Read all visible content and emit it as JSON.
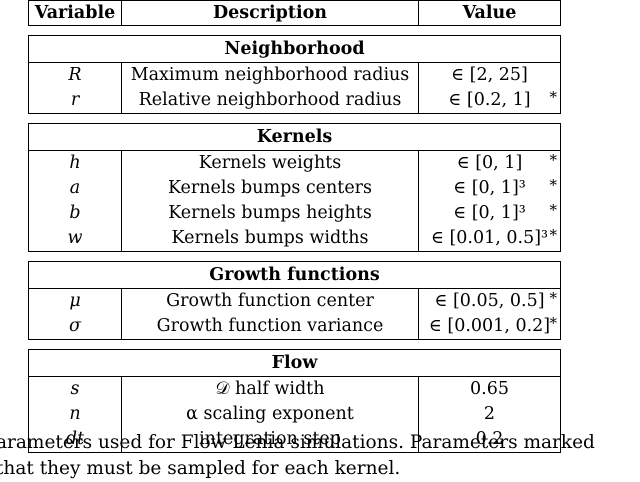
{
  "header": {
    "variable": "Variable",
    "description": "Description",
    "value": "Value"
  },
  "sections": [
    {
      "title": "Neighborhood",
      "rows": [
        {
          "var": "R",
          "desc": "Maximum neighborhood radius",
          "value": "∈ [2, 25]",
          "star": ""
        },
        {
          "var": "r",
          "desc": "Relative neighborhood radius",
          "value": "∈ [0.2, 1]",
          "star": "*"
        }
      ]
    },
    {
      "title": "Kernels",
      "rows": [
        {
          "var": "h",
          "desc": "Kernels weights",
          "value": "∈ [0, 1]",
          "star": "*"
        },
        {
          "var": "a",
          "desc": "Kernels bumps centers",
          "value": "∈ [0, 1]³",
          "star": "*"
        },
        {
          "var": "b",
          "desc": "Kernels bumps heights",
          "value": "∈ [0, 1]³",
          "star": "*"
        },
        {
          "var": "w",
          "desc": "Kernels bumps widths",
          "value": "∈ [0.01, 0.5]³",
          "star": "*"
        }
      ]
    },
    {
      "title": "Growth functions",
      "rows": [
        {
          "var": "μ",
          "desc": "Growth function center",
          "value": "∈ [0.05, 0.5]",
          "star": "*"
        },
        {
          "var": "σ",
          "desc": "Growth function variance",
          "value": "∈ [0.001, 0.2]",
          "star": "*"
        }
      ]
    },
    {
      "title": "Flow",
      "rows": [
        {
          "var": "s",
          "desc": "𝒟 half width",
          "value": "0.65",
          "star": ""
        },
        {
          "var": "n",
          "desc": "α scaling exponent",
          "value": "2",
          "star": ""
        },
        {
          "var": "dt",
          "desc": "integration step",
          "value": "0.2",
          "star": ""
        }
      ]
    }
  ],
  "caption": {
    "line1": "arameters used for Flow Lenia simulations. Parameters marked",
    "line2": " that they must be sampled for each kernel."
  }
}
